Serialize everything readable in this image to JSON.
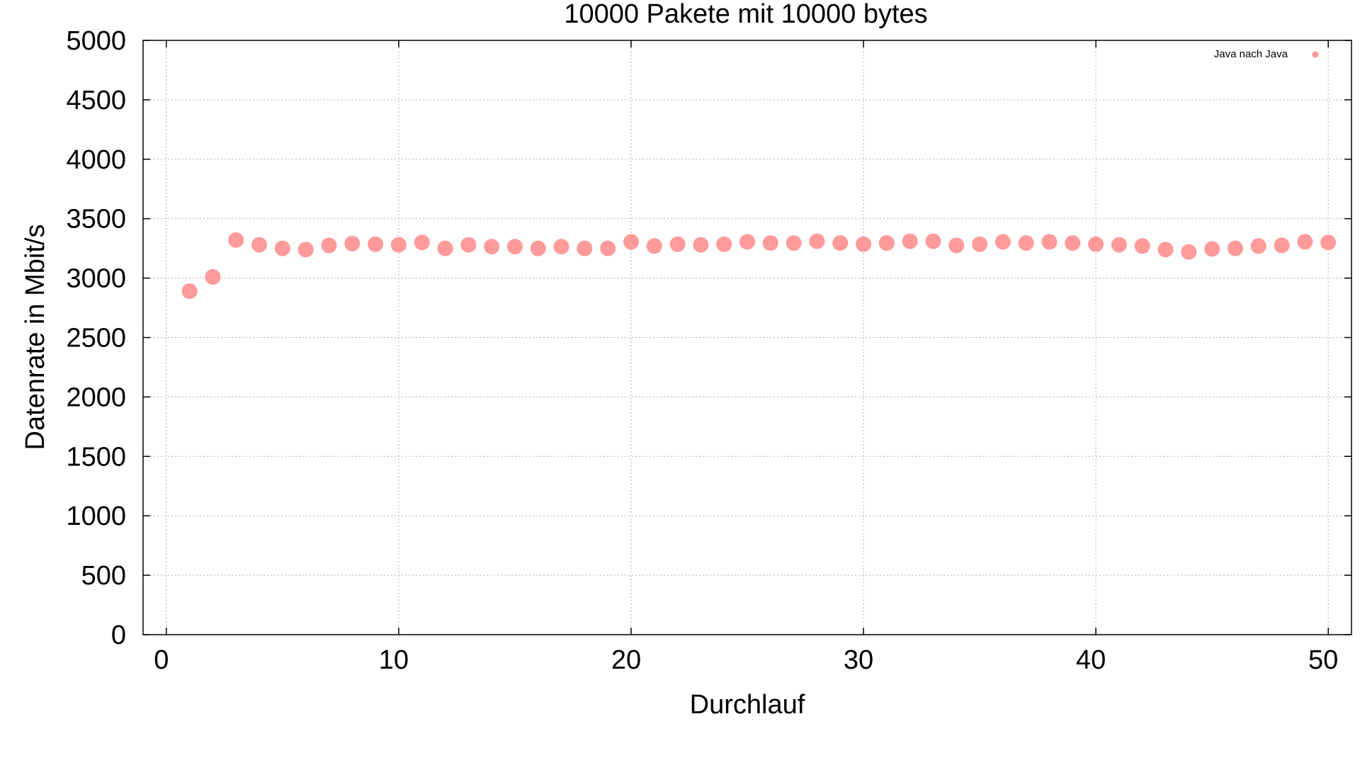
{
  "chart_data": {
    "type": "scatter",
    "title": "10000 Pakete mit 10000 bytes",
    "xlabel": "Durchlauf",
    "ylabel": "Datenrate in Mbit/s",
    "xlim": [
      -1,
      51
    ],
    "ylim": [
      0,
      5000
    ],
    "xticks": [
      0,
      10,
      20,
      30,
      40,
      50
    ],
    "yticks": [
      0,
      500,
      1000,
      1500,
      2000,
      2500,
      3000,
      3500,
      4000,
      4500,
      5000
    ],
    "grid": true,
    "legend_position": "top-right",
    "series": [
      {
        "name": "Java nach Java",
        "color": "#ff9a9a",
        "marker": "circle",
        "x": [
          1,
          2,
          3,
          4,
          5,
          6,
          7,
          8,
          9,
          10,
          11,
          12,
          13,
          14,
          15,
          16,
          17,
          18,
          19,
          20,
          21,
          22,
          23,
          24,
          25,
          26,
          27,
          28,
          29,
          30,
          31,
          32,
          33,
          34,
          35,
          36,
          37,
          38,
          39,
          40,
          41,
          42,
          43,
          44,
          45,
          46,
          47,
          48,
          49,
          50
        ],
        "y": [
          2890,
          3010,
          3320,
          3280,
          3250,
          3240,
          3275,
          3290,
          3285,
          3280,
          3300,
          3250,
          3280,
          3265,
          3265,
          3250,
          3265,
          3250,
          3250,
          3305,
          3270,
          3285,
          3280,
          3285,
          3305,
          3295,
          3295,
          3310,
          3295,
          3285,
          3295,
          3310,
          3310,
          3275,
          3285,
          3305,
          3295,
          3305,
          3295,
          3285,
          3280,
          3270,
          3240,
          3220,
          3245,
          3250,
          3270,
          3275,
          3305,
          3300
        ]
      }
    ]
  }
}
